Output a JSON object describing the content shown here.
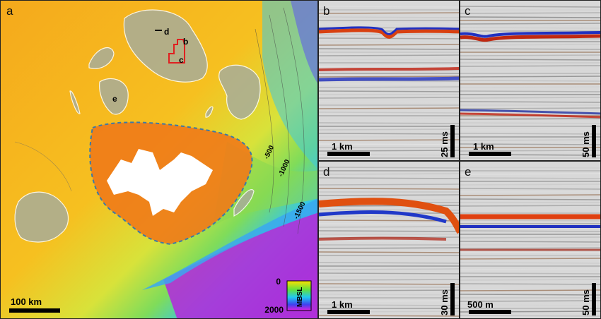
{
  "map": {
    "panel_label": "a",
    "inset_labels": [
      "d",
      "b",
      "c",
      "e"
    ],
    "contour_labels": [
      "-500",
      "-1000",
      "-1500"
    ],
    "scale_label": "100 km",
    "colorbar": {
      "top": "0",
      "bottom": "2000",
      "unit": "MBSL"
    }
  },
  "panels": [
    {
      "id": "b",
      "scale_label": "1 km",
      "time_label": "25 ms"
    },
    {
      "id": "c",
      "scale_label": "1 km",
      "time_label": "50 ms"
    },
    {
      "id": "d",
      "scale_label": "1 km",
      "time_label": "30 ms"
    },
    {
      "id": "e",
      "scale_label": "500 m",
      "time_label": "50 ms"
    }
  ],
  "colors": {
    "shelf": "#f08a1a",
    "deep": "#c020d8",
    "mid": "#30c8e0",
    "highlight": "#e0e0e0"
  }
}
